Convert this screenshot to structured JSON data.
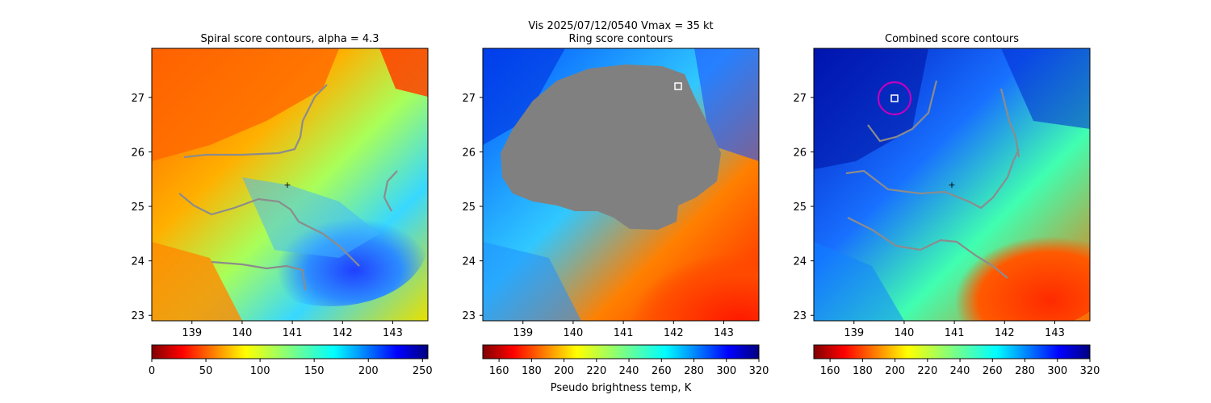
{
  "figure": {
    "suptitle": "Vis  2025/07/12/0540    Vmax = 35 kt"
  },
  "chart_data": [
    {
      "type": "heatmap",
      "title": "Spiral score contours, alpha =  4.3",
      "xlim": [
        138.2,
        143.7
      ],
      "ylim": [
        22.9,
        27.9
      ],
      "xticks": [
        "139",
        "140",
        "141",
        "142",
        "143"
      ],
      "yticks": [
        "23",
        "24",
        "25",
        "26",
        "27"
      ],
      "colorbar": {
        "colormap": "jet_r",
        "range": [
          0,
          255
        ],
        "ticks": [
          "0",
          "50",
          "100",
          "150",
          "200",
          "250"
        ],
        "label": ""
      },
      "center_marker": {
        "x": 140.9,
        "y": 25.4,
        "color": "#ffffff"
      },
      "coastline_color": "#8c8c8c"
    },
    {
      "type": "heatmap",
      "title": "Ring score contours",
      "xlim": [
        138.2,
        143.7
      ],
      "ylim": [
        22.9,
        27.9
      ],
      "xticks": [
        "139",
        "140",
        "141",
        "142",
        "143"
      ],
      "yticks": [
        "23",
        "24",
        "25",
        "26",
        "27"
      ],
      "colorbar": {
        "colormap": "jet_r",
        "range": [
          150,
          320
        ],
        "ticks": [
          "160",
          "180",
          "200",
          "220",
          "240",
          "260",
          "280",
          "300",
          "320"
        ],
        "label": "Pseudo brightness temp, K"
      },
      "masked_region_color": "#808080",
      "square_marker": {
        "x": 142.0,
        "y": 27.2,
        "color": "#ffffff"
      }
    },
    {
      "type": "heatmap",
      "title": "Combined score contours",
      "xlim": [
        138.2,
        143.7
      ],
      "ylim": [
        22.9,
        27.9
      ],
      "xticks": [
        "139",
        "140",
        "141",
        "142",
        "143"
      ],
      "yticks": [
        "23",
        "24",
        "25",
        "26",
        "27"
      ],
      "colorbar": {
        "colormap": "jet_r",
        "range": [
          150,
          320
        ],
        "ticks": [
          "160",
          "180",
          "200",
          "220",
          "240",
          "260",
          "280",
          "300",
          "320"
        ],
        "label": ""
      },
      "center_marker": {
        "x": 140.9,
        "y": 25.4,
        "color": "#ffffff"
      },
      "square_marker": {
        "x": 139.7,
        "y": 27.0,
        "color": "#ffffff"
      },
      "circle_marker": {
        "x": 139.7,
        "y": 27.0,
        "radius_deg": 0.3,
        "color": "#c000c0"
      },
      "coastline_color": "#8c8c8c"
    }
  ]
}
